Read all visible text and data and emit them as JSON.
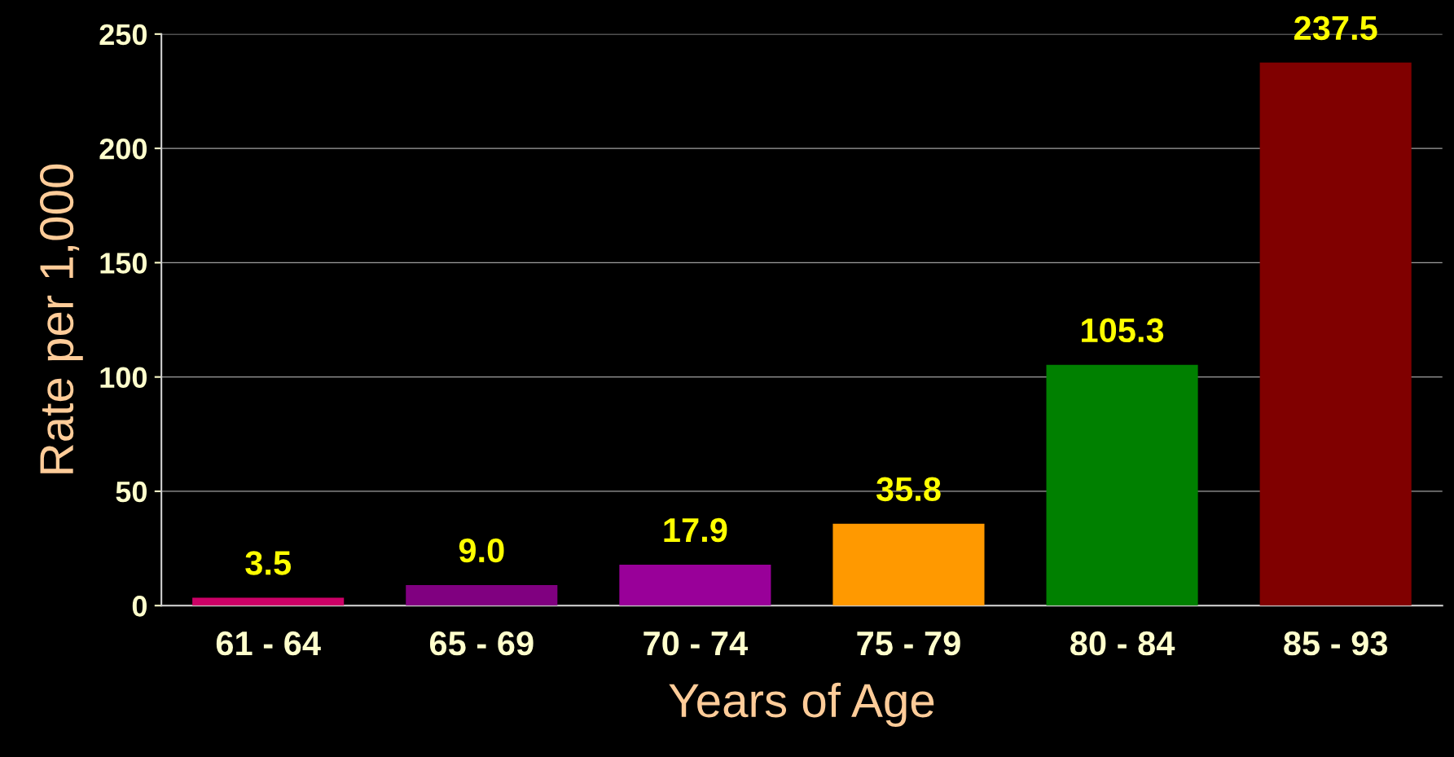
{
  "chart_data": {
    "type": "bar",
    "xlabel": "Years of Age",
    "ylabel": "Rate per 1,000",
    "categories": [
      "61 - 64",
      "65 - 69",
      "70 - 74",
      "75 - 79",
      "80 - 84",
      "85 - 93"
    ],
    "values": [
      3.5,
      9.0,
      17.9,
      35.8,
      105.3,
      237.5
    ],
    "colors": [
      "#cc0066",
      "#800080",
      "#990099",
      "#ff9900",
      "#008000",
      "#800000"
    ],
    "value_labels": [
      "3.5",
      "9.0",
      "17.9",
      "35.8",
      "105.3",
      "237.5"
    ],
    "ylim": [
      0,
      250
    ],
    "yticks": [
      0,
      50,
      100,
      150,
      200,
      250
    ],
    "grid": "y",
    "legend": false
  }
}
